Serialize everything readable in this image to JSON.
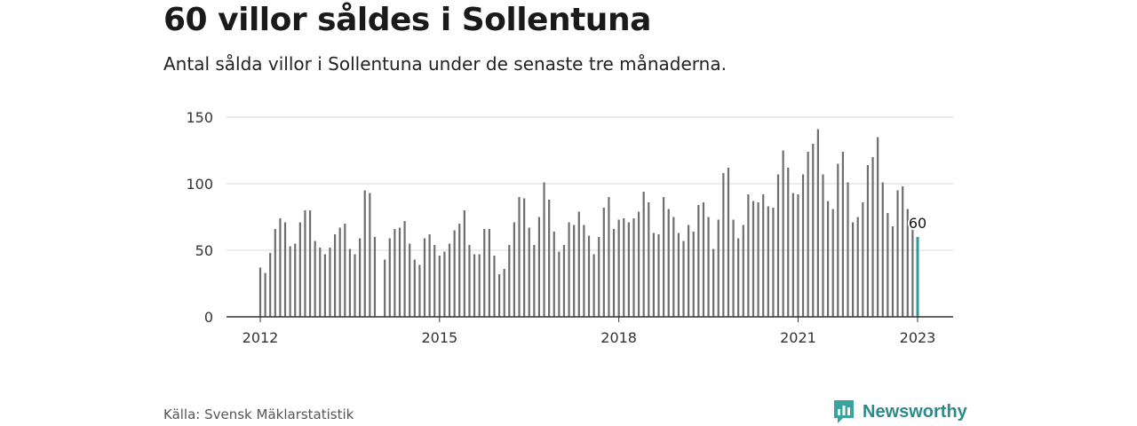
{
  "header": {
    "title": "60 villor såldes i Sollentuna",
    "subtitle": "Antal sålda villor i Sollentuna under de senaste tre månaderna."
  },
  "footer": {
    "source": "Källa: Svensk Mäklarstatistik",
    "brand": "Newsworthy"
  },
  "colors": {
    "bar": "#6e6e6e",
    "highlight": "#2a9d9a",
    "grid": "#d9d9d9",
    "axis": "#333333",
    "brand": "#2b8a8a"
  },
  "chart_data": {
    "type": "bar",
    "x_start": "2012-01",
    "x_end": "2023-01",
    "x_unit": "month",
    "xticks": [
      "2012",
      "2015",
      "2018",
      "2021",
      "2023"
    ],
    "yticks": [
      0,
      50,
      100,
      150
    ],
    "ylim": [
      0,
      155
    ],
    "grid": true,
    "annotation": "60",
    "values": [
      37,
      33,
      48,
      66,
      74,
      71,
      53,
      55,
      71,
      80,
      80,
      57,
      52,
      47,
      52,
      62,
      67,
      70,
      51,
      47,
      59,
      95,
      93,
      60,
      null,
      43,
      59,
      66,
      67,
      72,
      55,
      43,
      39,
      59,
      62,
      54,
      46,
      49,
      55,
      65,
      70,
      80,
      54,
      47,
      47,
      66,
      66,
      46,
      32,
      36,
      54,
      71,
      90,
      89,
      67,
      54,
      75,
      101,
      88,
      64,
      49,
      54,
      71,
      69,
      79,
      69,
      61,
      47,
      60,
      82,
      90,
      66,
      73,
      74,
      71,
      74,
      79,
      94,
      86,
      63,
      62,
      90,
      81,
      75,
      63,
      57,
      69,
      64,
      84,
      86,
      75,
      51,
      73,
      108,
      112,
      73,
      59,
      69,
      92,
      87,
      86,
      92,
      83,
      82,
      107,
      125,
      112,
      93,
      92,
      107,
      124,
      130,
      141,
      107,
      87,
      81,
      115,
      124,
      101,
      71,
      75,
      86,
      114,
      120,
      135,
      101,
      78,
      68,
      95,
      98,
      81,
      66,
      60
    ]
  }
}
